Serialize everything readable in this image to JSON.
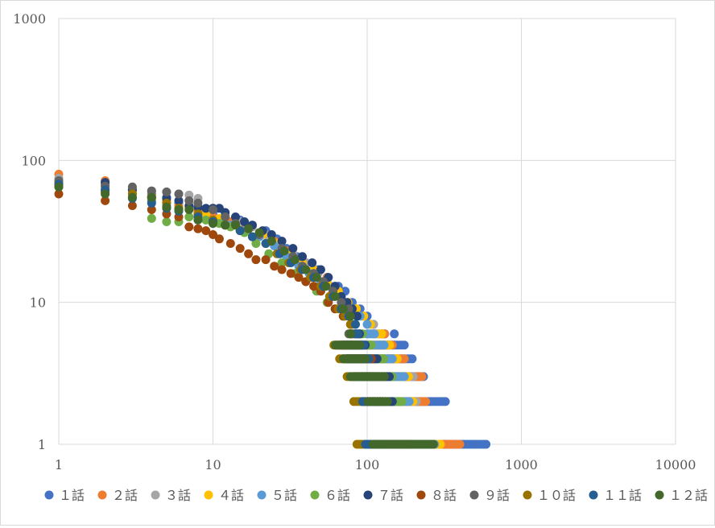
{
  "chart_data": {
    "type": "scatter",
    "title": "",
    "xlabel": "",
    "ylabel": "",
    "x_scale": "log",
    "y_scale": "log",
    "xlim": [
      1,
      10000
    ],
    "ylim": [
      1,
      1000
    ],
    "x_ticks": [
      "1",
      "10",
      "100",
      "1000",
      "10000"
    ],
    "y_ticks": [
      "1",
      "10",
      "100",
      "1000"
    ],
    "grid": true,
    "legend_position": "bottom",
    "series": [
      {
        "name": "１話",
        "color": "#4472C4",
        "x": [
          1,
          2,
          3,
          4,
          5,
          6,
          7,
          8,
          10,
          12,
          15,
          18,
          22,
          26,
          30,
          35,
          40,
          48,
          55,
          65,
          72,
          80,
          90,
          100,
          110,
          130,
          150
        ],
        "y": [
          70,
          68,
          62,
          58,
          55,
          50,
          47,
          45,
          42,
          40,
          38,
          35,
          32,
          28,
          24,
          21,
          19,
          17,
          15,
          13,
          12,
          10,
          9,
          8,
          7,
          6,
          5
        ],
        "ranks_end": [
          150,
          175,
          200,
          240,
          330,
          600
        ]
      },
      {
        "name": "２話",
        "color": "#ED7D31",
        "x": [
          1,
          2,
          3,
          4,
          5,
          6,
          8,
          10,
          13,
          16,
          20,
          25,
          30,
          38,
          45,
          55,
          65,
          75,
          85,
          95,
          110,
          125
        ],
        "y": [
          80,
          72,
          62,
          56,
          52,
          48,
          44,
          40,
          37,
          34,
          30,
          27,
          23,
          20,
          17,
          15,
          12,
          10,
          9,
          8,
          7,
          6
        ],
        "ranks_end": [
          130,
          150,
          175,
          230,
          240,
          400
        ]
      },
      {
        "name": "３話",
        "color": "#A5A5A5",
        "x": [
          1,
          2,
          3,
          4,
          5,
          6,
          7,
          8,
          10,
          12,
          15,
          18,
          22,
          27,
          33,
          40,
          48,
          58,
          68,
          80,
          95,
          110
        ],
        "y": [
          75,
          68,
          64,
          61,
          60,
          58,
          57,
          54,
          46,
          41,
          37,
          34,
          30,
          26,
          22,
          19,
          16,
          13,
          11,
          9,
          8,
          7
        ],
        "ranks_end": [
          120,
          140,
          160,
          200,
          210,
          290
        ]
      },
      {
        "name": "４話",
        "color": "#FFC000",
        "x": [
          1,
          2,
          3,
          4,
          5,
          7,
          9,
          11,
          14,
          17,
          21,
          26,
          32,
          38,
          45,
          55,
          65,
          75,
          85,
          95,
          105,
          120
        ],
        "y": [
          70,
          65,
          60,
          55,
          50,
          46,
          42,
          39,
          36,
          33,
          30,
          26,
          22,
          19,
          17,
          14,
          12,
          10,
          9,
          8,
          7,
          6
        ],
        "ranks_end": [
          125,
          140,
          160,
          190,
          200,
          300
        ]
      },
      {
        "name": "５話",
        "color": "#5B9BD5",
        "x": [
          1,
          2,
          3,
          4,
          5,
          6,
          8,
          10,
          13,
          16,
          20,
          25,
          30,
          36,
          42,
          50,
          60,
          70,
          80,
          90,
          100
        ],
        "y": [
          68,
          62,
          58,
          52,
          48,
          45,
          42,
          38,
          35,
          32,
          29,
          25,
          21,
          18,
          16,
          14,
          12,
          10,
          9,
          8,
          7
        ],
        "ranks_end": [
          115,
          130,
          150,
          180,
          190,
          280
        ]
      },
      {
        "name": "６話",
        "color": "#70AD47",
        "x": [
          1,
          2,
          3,
          4,
          5,
          6,
          7,
          9,
          11,
          13,
          16,
          19,
          23,
          28,
          34,
          40,
          47,
          55,
          62,
          70,
          80,
          90
        ],
        "y": [
          65,
          60,
          55,
          39,
          37,
          37,
          40,
          38,
          36,
          34,
          31,
          26,
          22,
          19,
          16,
          14,
          12,
          10,
          9,
          8,
          7,
          6
        ],
        "ranks_end": [
          95,
          110,
          130,
          150,
          170,
          250
        ]
      },
      {
        "name": "７話",
        "color": "#264478",
        "x": [
          1,
          2,
          3,
          4,
          5,
          6,
          7,
          8,
          9,
          10,
          11,
          12,
          14,
          16,
          18,
          21,
          24,
          28,
          33,
          38,
          44,
          50,
          56,
          62,
          68,
          74,
          80,
          86
        ],
        "y": [
          68,
          70,
          62,
          55,
          54,
          52,
          48,
          47,
          46,
          46,
          46,
          43,
          40,
          37,
          35,
          32,
          30,
          27,
          24,
          21,
          19,
          17,
          15,
          13,
          11,
          10,
          9,
          8
        ],
        "ranks_end": [
          90,
          100,
          120,
          140,
          150,
          200
        ]
      },
      {
        "name": "８話",
        "color": "#9E480E",
        "x": [
          1,
          2,
          3,
          4,
          5,
          6,
          7,
          8,
          9,
          10,
          11,
          13,
          15,
          17,
          19,
          22,
          25,
          28,
          32,
          36,
          40,
          45,
          50,
          56,
          62,
          70,
          78
        ],
        "y": [
          58,
          52,
          48,
          45,
          42,
          40,
          34,
          33,
          32,
          30,
          28,
          26,
          24,
          22,
          20,
          20,
          18,
          17,
          16,
          15,
          14,
          13,
          12,
          10,
          9,
          8,
          7
        ],
        "ranks_end": [
          85,
          95,
          110,
          130,
          140,
          190
        ]
      },
      {
        "name": "９話",
        "color": "#636363",
        "x": [
          1,
          2,
          3,
          4,
          5,
          6,
          7,
          8,
          10,
          12,
          14,
          17,
          20,
          24,
          28,
          33,
          38,
          45,
          52,
          60,
          68,
          76
        ],
        "y": [
          72,
          66,
          65,
          61,
          60,
          58,
          52,
          50,
          45,
          40,
          36,
          33,
          30,
          27,
          24,
          21,
          18,
          16,
          14,
          12,
          10,
          9
        ],
        "ranks_end": [
          80,
          90,
          100,
          120,
          130,
          180
        ]
      },
      {
        "name": "１０話",
        "color": "#997300",
        "x": [
          1,
          2,
          3,
          4,
          5,
          6,
          8,
          10,
          12,
          15,
          18,
          22,
          26,
          31,
          37,
          43,
          50,
          57,
          65,
          72,
          78
        ],
        "y": [
          66,
          60,
          58,
          54,
          50,
          46,
          42,
          38,
          35,
          32,
          29,
          26,
          22,
          19,
          17,
          15,
          13,
          11,
          9,
          8,
          7
        ],
        "ranks_end": [
          78,
          85,
          95,
          105,
          110,
          120
        ]
      },
      {
        "name": "１１話",
        "color": "#255E91",
        "x": [
          1,
          2,
          3,
          4,
          5,
          6,
          8,
          10,
          12,
          15,
          18,
          22,
          27,
          32,
          38,
          45,
          52,
          60,
          68,
          76,
          84
        ],
        "y": [
          68,
          62,
          54,
          50,
          46,
          44,
          40,
          37,
          35,
          32,
          29,
          26,
          22,
          19,
          17,
          15,
          13,
          11,
          9,
          8,
          7
        ],
        "ranks_end": [
          88,
          95,
          105,
          120,
          125,
          140
        ]
      },
      {
        "name": "１２話",
        "color": "#43682B",
        "x": [
          1,
          2,
          3,
          4,
          5,
          6,
          7,
          8,
          10,
          12,
          14,
          17,
          20,
          24,
          29,
          34,
          40,
          47,
          54,
          62,
          70,
          78
        ],
        "y": [
          65,
          58,
          55,
          55,
          47,
          45,
          45,
          38,
          36,
          35,
          35,
          33,
          31,
          27,
          23,
          20,
          17,
          15,
          13,
          11,
          9,
          8
        ],
        "ranks_end": [
          80,
          90,
          100,
          130,
          140,
          270
        ]
      }
    ]
  }
}
